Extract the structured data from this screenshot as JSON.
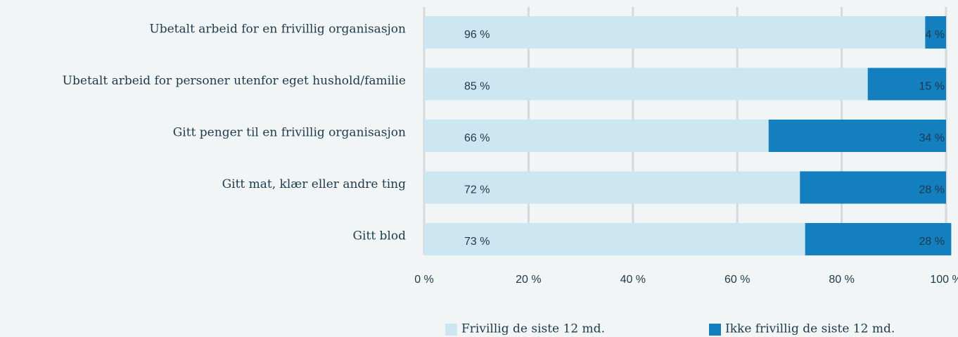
{
  "chart_data": {
    "type": "bar",
    "orientation": "horizontal",
    "stacked": true,
    "categories": [
      "Ubetalt arbeid for en frivillig organisasjon",
      "Ubetalt arbeid for personer utenfor eget hushold/familie",
      "Gitt penger til en frivillig organisasjon",
      "Gitt mat, klær eller andre ting",
      "Gitt blod"
    ],
    "series": [
      {
        "name": "Frivillig de siste 12 md.",
        "color": "#cce7f2",
        "values": [
          96,
          85,
          66,
          72,
          73
        ],
        "value_labels": [
          "96 %",
          "85 %",
          "66 %",
          "72 %",
          "73 %"
        ]
      },
      {
        "name": "Ikke frivillig de siste 12 md.",
        "color": "#137fbf",
        "values": [
          4,
          15,
          34,
          28,
          28
        ],
        "value_labels": [
          "4 %",
          "15 %",
          "34 %",
          "28 %",
          "28 %"
        ]
      }
    ],
    "xlim": [
      0,
      100
    ],
    "xticks": [
      {
        "value": 0,
        "label": "0 %"
      },
      {
        "value": 20,
        "label": "20 %"
      },
      {
        "value": 40,
        "label": "40 %"
      },
      {
        "value": 60,
        "label": "60 %"
      },
      {
        "value": 80,
        "label": "80 %"
      },
      {
        "value": 100,
        "label": "100 %"
      }
    ],
    "grid": true,
    "legend": "bottom"
  }
}
